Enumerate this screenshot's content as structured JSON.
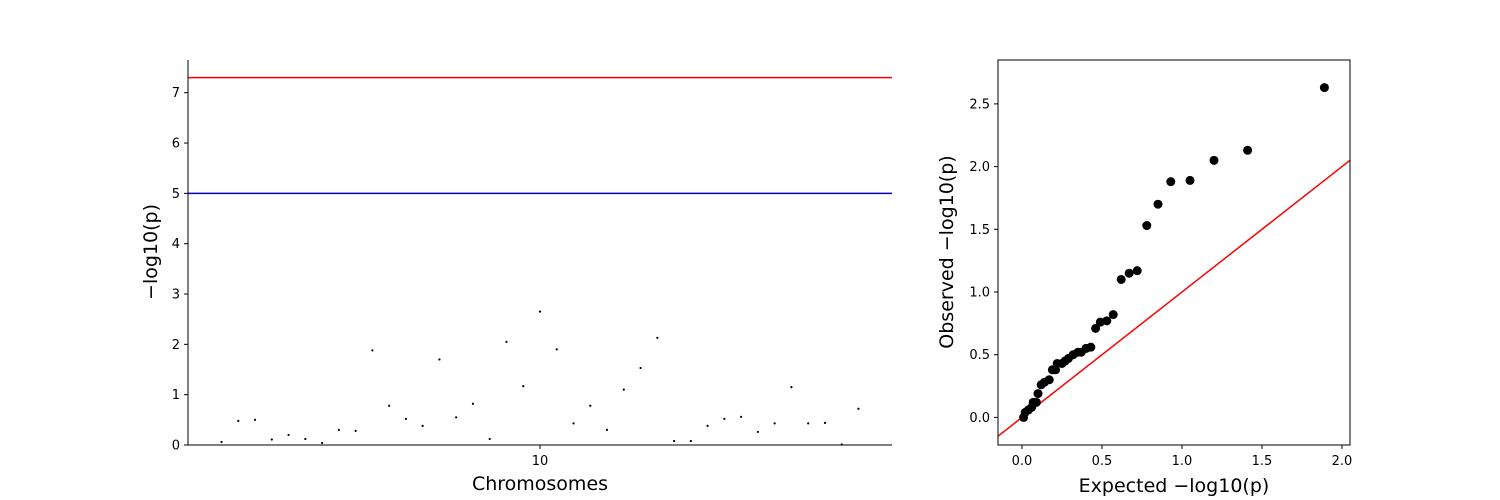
{
  "chart_data": [
    {
      "type": "scatter",
      "subtype": "manhattan",
      "xlabel": "Chromosomes",
      "ylabel": "−log10(p)",
      "x_tick_labels": [
        {
          "x": 20,
          "label": "10"
        }
      ],
      "y_ticks": [
        0,
        1,
        2,
        3,
        4,
        5,
        6,
        7
      ],
      "xlim": [
        -1,
        41
      ],
      "ylim": [
        0,
        7.65
      ],
      "spines": "left-and-bottom",
      "thresholds": [
        {
          "y": 7.3,
          "color": "#ff0000"
        },
        {
          "y": 5.0,
          "color": "#0000cc"
        }
      ],
      "point_color": "#000000",
      "points": [
        {
          "x": 1,
          "y": 0.06
        },
        {
          "x": 2,
          "y": 0.48
        },
        {
          "x": 3,
          "y": 0.5
        },
        {
          "x": 4,
          "y": 0.11
        },
        {
          "x": 5,
          "y": 0.2
        },
        {
          "x": 6,
          "y": 0.12
        },
        {
          "x": 7,
          "y": 0.04
        },
        {
          "x": 8,
          "y": 0.3
        },
        {
          "x": 9,
          "y": 0.28
        },
        {
          "x": 10,
          "y": 1.88
        },
        {
          "x": 11,
          "y": 0.78
        },
        {
          "x": 12,
          "y": 0.52
        },
        {
          "x": 13,
          "y": 0.38
        },
        {
          "x": 14,
          "y": 1.7
        },
        {
          "x": 15,
          "y": 0.55
        },
        {
          "x": 16,
          "y": 0.82
        },
        {
          "x": 17,
          "y": 0.12
        },
        {
          "x": 18,
          "y": 2.05
        },
        {
          "x": 19,
          "y": 1.17
        },
        {
          "x": 20,
          "y": 2.65
        },
        {
          "x": 21,
          "y": 1.9
        },
        {
          "x": 22,
          "y": 0.43
        },
        {
          "x": 23,
          "y": 0.78
        },
        {
          "x": 24,
          "y": 0.3
        },
        {
          "x": 25,
          "y": 1.1
        },
        {
          "x": 26,
          "y": 1.53
        },
        {
          "x": 27,
          "y": 2.13
        },
        {
          "x": 28,
          "y": 0.08
        },
        {
          "x": 29,
          "y": 0.08
        },
        {
          "x": 30,
          "y": 0.38
        },
        {
          "x": 31,
          "y": 0.52
        },
        {
          "x": 32,
          "y": 0.56
        },
        {
          "x": 33,
          "y": 0.26
        },
        {
          "x": 34,
          "y": 0.43
        },
        {
          "x": 35,
          "y": 1.15
        },
        {
          "x": 36,
          "y": 0.43
        },
        {
          "x": 37,
          "y": 0.44
        },
        {
          "x": 38,
          "y": 0.01
        },
        {
          "x": 39,
          "y": 0.72
        }
      ]
    },
    {
      "type": "scatter",
      "subtype": "qq",
      "xlabel": "Expected −log10(p)",
      "ylabel": "Observed −log10(p)",
      "x_ticks": [
        0.0,
        0.5,
        1.0,
        1.5,
        2.0
      ],
      "y_ticks": [
        0.0,
        0.5,
        1.0,
        1.5,
        2.0,
        2.5
      ],
      "xlim": [
        -0.15,
        2.05
      ],
      "ylim": [
        -0.22,
        2.85
      ],
      "reference_line": {
        "slope": 1,
        "intercept": 0,
        "color": "#ff0000"
      },
      "point_color": "#000000",
      "points": [
        {
          "x": 0.01,
          "y": 0.0
        },
        {
          "x": 0.02,
          "y": 0.04
        },
        {
          "x": 0.04,
          "y": 0.06
        },
        {
          "x": 0.06,
          "y": 0.08
        },
        {
          "x": 0.07,
          "y": 0.12
        },
        {
          "x": 0.09,
          "y": 0.12
        },
        {
          "x": 0.1,
          "y": 0.19
        },
        {
          "x": 0.12,
          "y": 0.26
        },
        {
          "x": 0.14,
          "y": 0.28
        },
        {
          "x": 0.17,
          "y": 0.3
        },
        {
          "x": 0.19,
          "y": 0.38
        },
        {
          "x": 0.21,
          "y": 0.38
        },
        {
          "x": 0.22,
          "y": 0.43
        },
        {
          "x": 0.25,
          "y": 0.43
        },
        {
          "x": 0.27,
          "y": 0.45
        },
        {
          "x": 0.29,
          "y": 0.47
        },
        {
          "x": 0.32,
          "y": 0.5
        },
        {
          "x": 0.35,
          "y": 0.52
        },
        {
          "x": 0.37,
          "y": 0.52
        },
        {
          "x": 0.4,
          "y": 0.55
        },
        {
          "x": 0.43,
          "y": 0.56
        },
        {
          "x": 0.46,
          "y": 0.71
        },
        {
          "x": 0.49,
          "y": 0.76
        },
        {
          "x": 0.53,
          "y": 0.77
        },
        {
          "x": 0.57,
          "y": 0.82
        },
        {
          "x": 0.62,
          "y": 1.1
        },
        {
          "x": 0.67,
          "y": 1.15
        },
        {
          "x": 0.72,
          "y": 1.17
        },
        {
          "x": 0.78,
          "y": 1.53
        },
        {
          "x": 0.85,
          "y": 1.7
        },
        {
          "x": 0.93,
          "y": 1.88
        },
        {
          "x": 1.05,
          "y": 1.89
        },
        {
          "x": 1.2,
          "y": 2.05
        },
        {
          "x": 1.41,
          "y": 2.13
        },
        {
          "x": 1.89,
          "y": 2.63
        }
      ]
    }
  ]
}
